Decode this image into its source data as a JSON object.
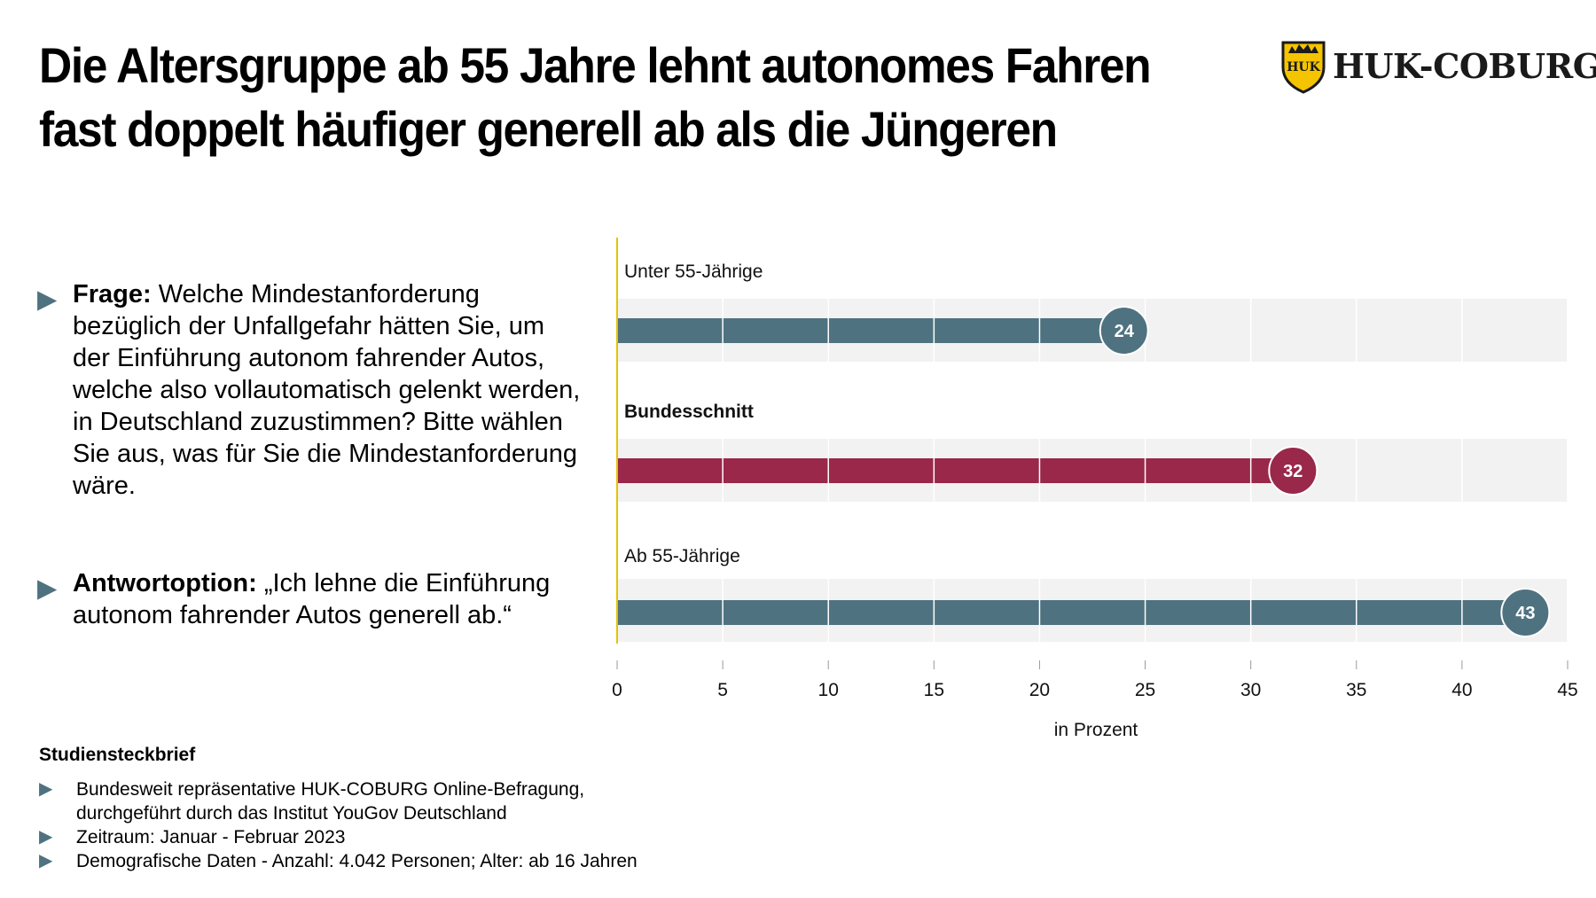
{
  "title_line1": "Die Altersgruppe ab 55 Jahre lehnt autonomes Fahren",
  "title_line2": "fast doppelt häufiger generell ab als die Jüngeren",
  "logo": {
    "text": "HUK-COBURG",
    "badge_text": "HUK",
    "color": "#f4c400"
  },
  "frage": {
    "label": "Frage:",
    "text": " Welche Mindestanforderung bezüglich der Unfallgefahr hätten Sie, um der Einführung autonom fahrender Autos, welche also vollautomatisch gelenkt werden, in Deutschland zuzustimmen? Bitte wählen Sie aus, was für Sie die Mindestanforderung wäre."
  },
  "antwort": {
    "label": "Antwortoption:",
    "text": " „Ich lehne die Einführung autonom fahrender Autos generell ab.“"
  },
  "steckbrief": {
    "title": "Studiensteckbrief",
    "items": [
      "Bundesweit repräsentative HUK-COBURG Online-Befragung,\ndurchgeführt durch das Institut YouGov Deutschland",
      "Zeitraum: Januar - Februar 2023",
      "Demografische Daten - Anzahl: 4.042 Personen; Alter: ab 16 Jahren"
    ]
  },
  "bullet_icon": "▶",
  "chart_data": {
    "type": "bar",
    "orientation": "horizontal",
    "categories": [
      "Unter 55-Jährige",
      "Bundesschnitt",
      "Ab 55-Jährige"
    ],
    "values": [
      24,
      32,
      43
    ],
    "bold_categories": [
      "Bundesschnitt"
    ],
    "colors": [
      "#4f7280",
      "#99284b",
      "#4f7280"
    ],
    "xlim": [
      0,
      45
    ],
    "xticks": [
      0,
      5,
      10,
      15,
      20,
      25,
      30,
      35,
      40,
      45
    ],
    "xlabel": "in Prozent",
    "grid": true,
    "track_color": "#f2f2f2",
    "axis_line_color": "#e6c200"
  }
}
